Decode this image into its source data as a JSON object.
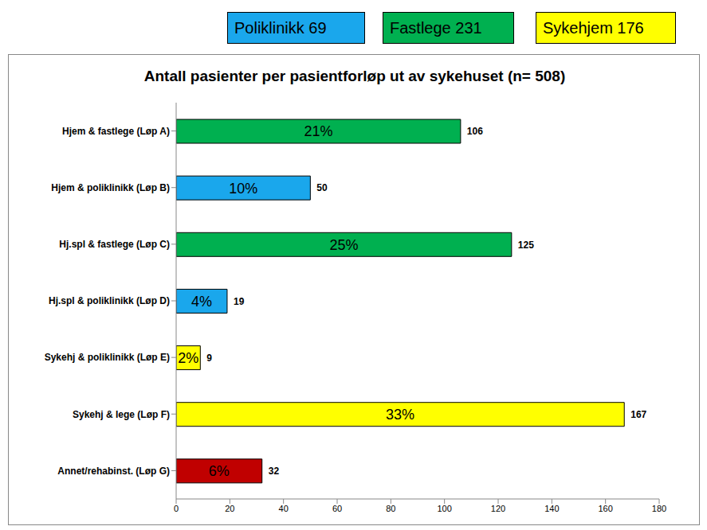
{
  "chart_data": {
    "type": "bar",
    "orientation": "horizontal",
    "title": "Antall pasienter per pasientforløp ut av sykehuset (n= 508)",
    "categories": [
      "Hjem & fastlege (Løp A)",
      "Hjem & poliklinikk (Løp B)",
      "Hj.spl & fastlege (Løp C)",
      "Hj.spl & poliklinikk (Løp D)",
      "Sykehj & poliklinikk (Løp E)",
      "Sykehj & lege (Løp F)",
      "Annet/rehabinst. (Løp G)"
    ],
    "values": [
      106,
      50,
      125,
      19,
      9,
      167,
      32
    ],
    "share_labels": [
      "21%",
      "10%",
      "25%",
      "4%",
      "2%",
      "33%",
      "6%"
    ],
    "colors": [
      "#00b050",
      "#1aa7ec",
      "#00b050",
      "#1aa7ec",
      "#ffff00",
      "#ffff00",
      "#c00000"
    ],
    "data_labels": true,
    "grid": false,
    "xlim": [
      0,
      180
    ],
    "xticks": [
      0,
      20,
      40,
      60,
      80,
      100,
      120,
      140,
      160,
      180
    ],
    "group_boxes": [
      {
        "label": "Poliklinikk 69",
        "color": "#1aa7ec"
      },
      {
        "label": "Fastlege 231",
        "color": "#00b050"
      },
      {
        "label": "Sykehjem 176",
        "color": "#ffff00"
      }
    ]
  }
}
